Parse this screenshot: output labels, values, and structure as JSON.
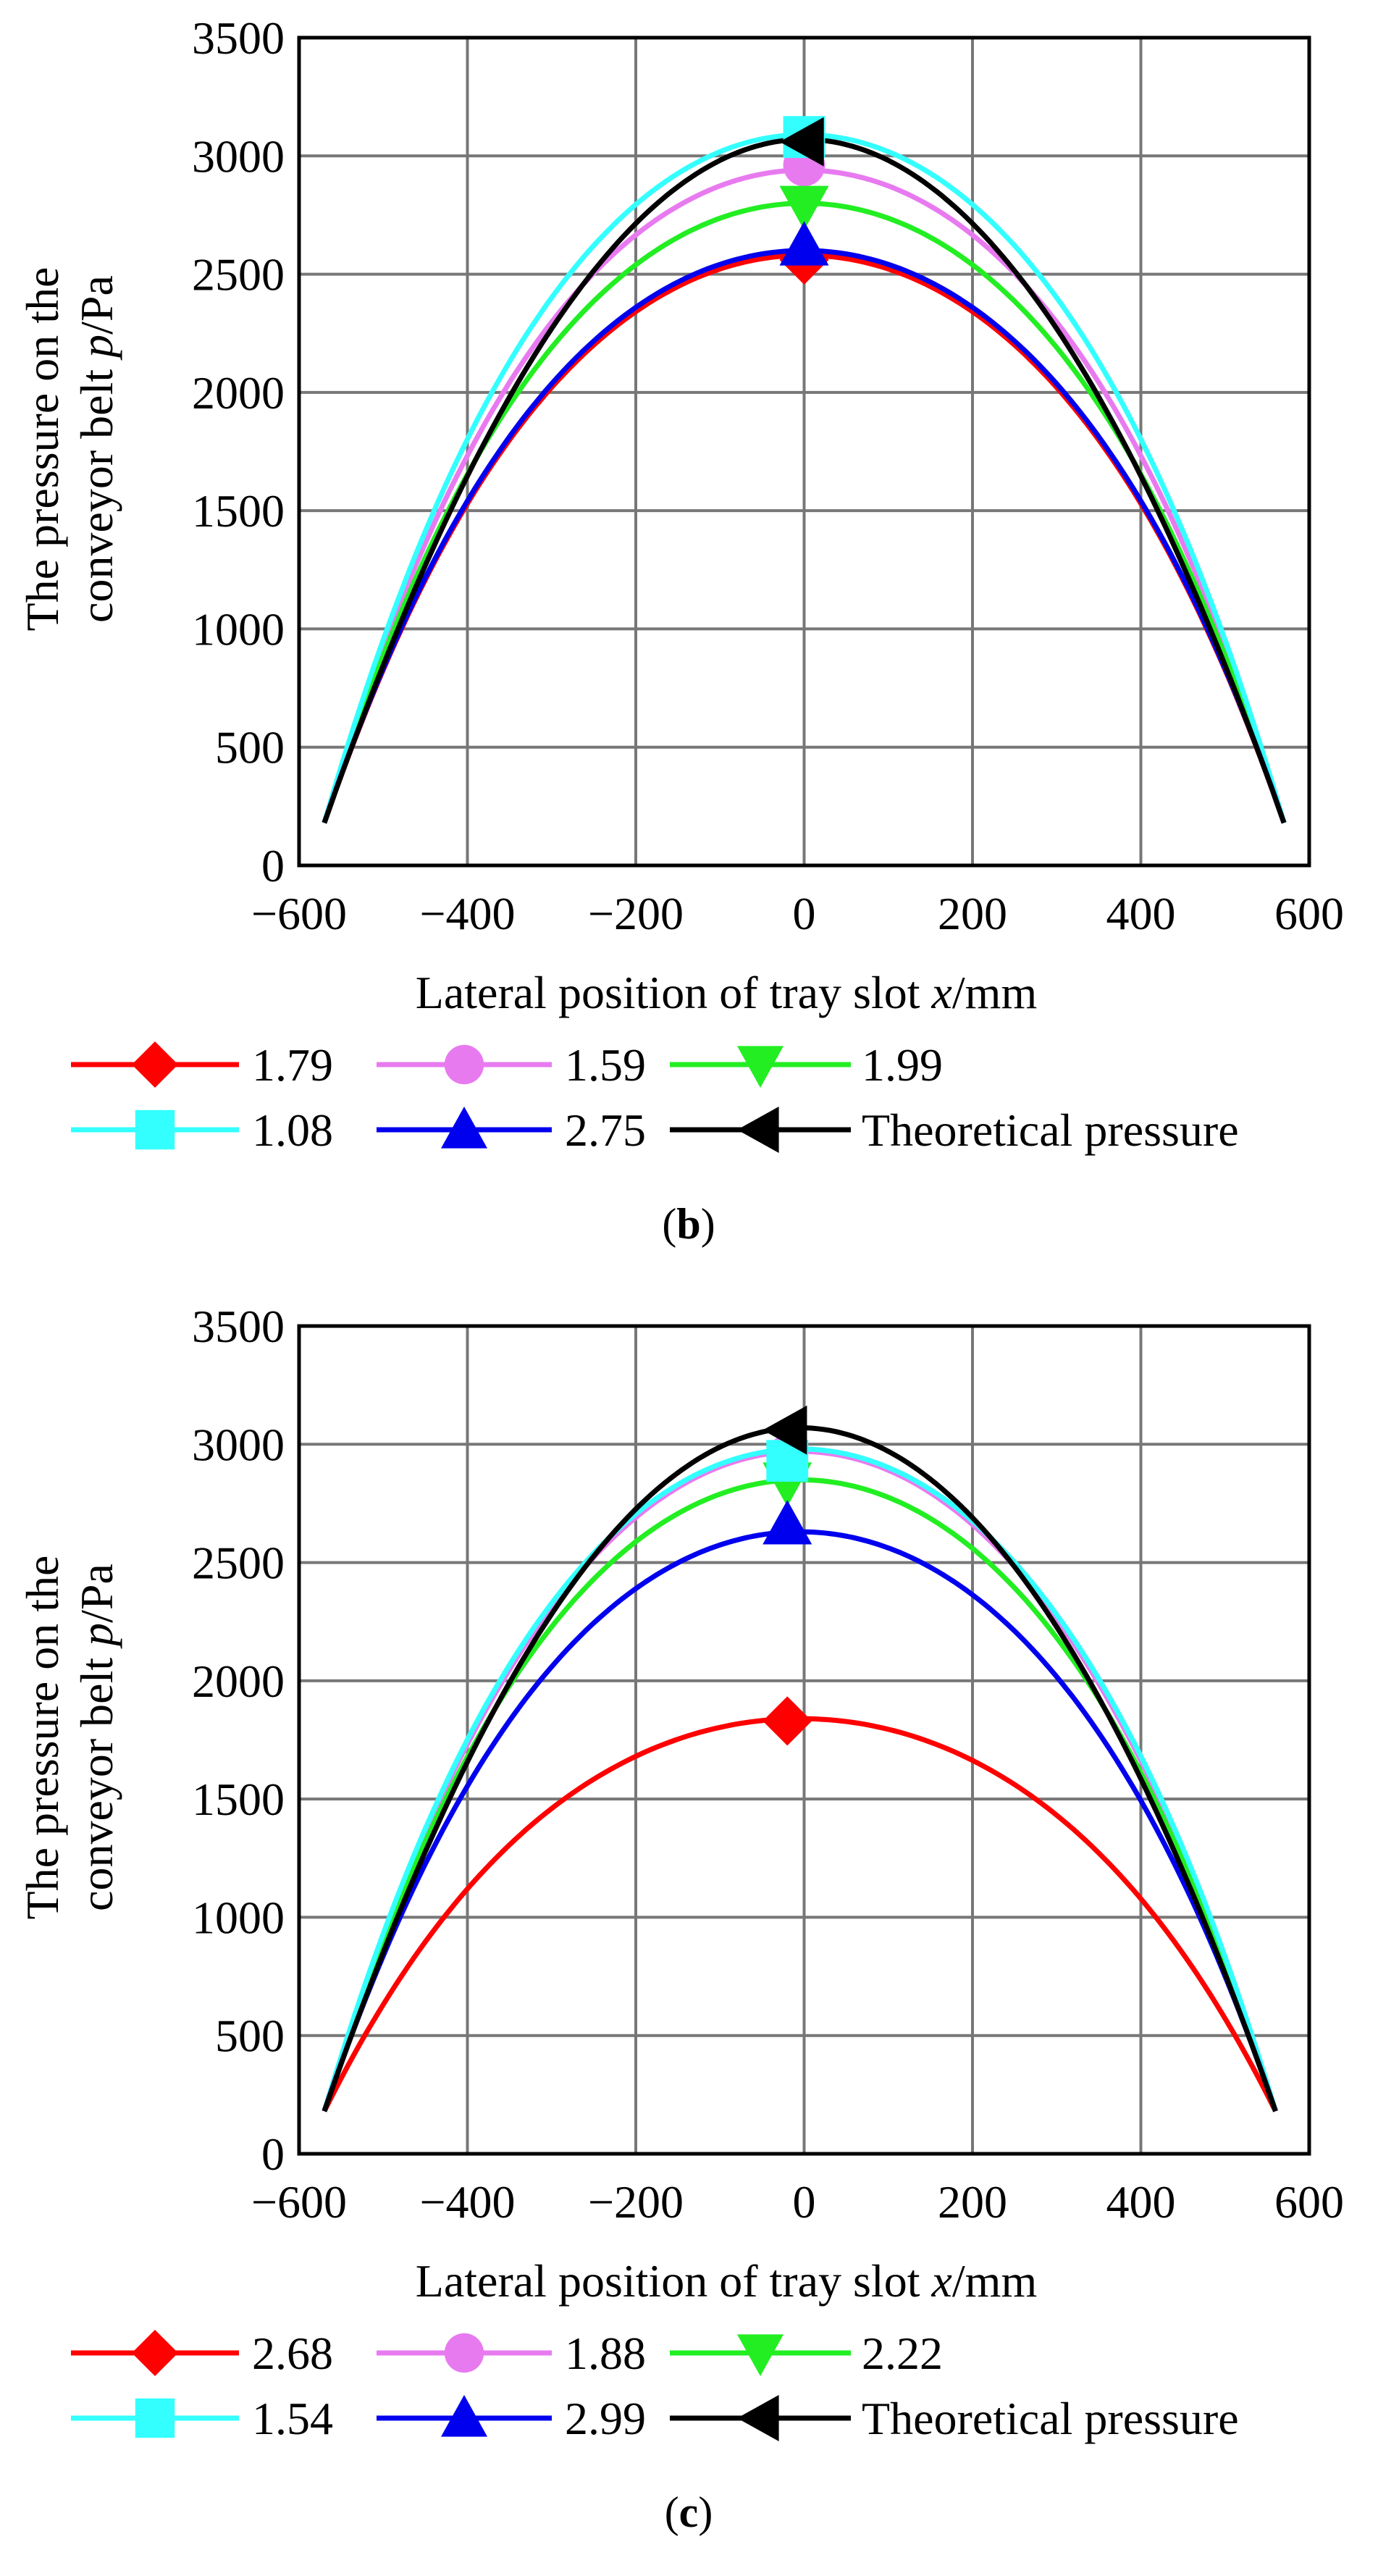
{
  "chart_data": [
    {
      "type": "line",
      "panel": "b",
      "caption_open": "(",
      "caption_letter": "b",
      "caption_close": ")",
      "xlabel_prefix": "Lateral position of tray slot ",
      "xlabel_var": "x",
      "xlabel_unit": "/mm",
      "ylabel_line1": "The pressure on the",
      "ylabel_line2_prefix": "conveyor belt ",
      "ylabel_var": "p",
      "ylabel_unit": "/Pa",
      "xlim": [
        -600,
        600
      ],
      "ylim": [
        0,
        3500
      ],
      "xticks": [
        -600,
        -400,
        -200,
        0,
        200,
        400,
        600
      ],
      "xtick_labels": [
        "−600",
        "−400",
        "−200",
        "0",
        "200",
        "400",
        "600"
      ],
      "yticks": [
        0,
        500,
        1000,
        1500,
        2000,
        2500,
        3000,
        3500
      ],
      "ytick_labels": [
        "0",
        "500",
        "1000",
        "1500",
        "2000",
        "2500",
        "3000",
        "3500"
      ],
      "grid": true,
      "legend_position": "bottom",
      "x_range": [
        -570,
        570
      ],
      "series": [
        {
          "name": "1.79",
          "color": "#ff0000",
          "marker": "diamond",
          "peak": 2580,
          "edge": 180,
          "shape": 0.55,
          "marker_x": 0,
          "marker_y": 2560
        },
        {
          "name": "1.59",
          "color": "#e87af0",
          "marker": "circle",
          "peak": 2940,
          "edge": 180,
          "shape": 0.55,
          "marker_x": 0,
          "marker_y": 2960
        },
        {
          "name": "1.99",
          "color": "#22ee22",
          "marker": "triangle-down",
          "peak": 2800,
          "edge": 180,
          "shape": 0.55,
          "marker_x": 0,
          "marker_y": 2790
        },
        {
          "name": "1.08",
          "color": "#33ffff",
          "marker": "square",
          "peak": 3090,
          "edge": 180,
          "shape": 0.5,
          "marker_x": 0,
          "marker_y": 3080
        },
        {
          "name": "2.75",
          "color": "#0000ee",
          "marker": "triangle-up",
          "peak": 2600,
          "edge": 180,
          "shape": 0.55,
          "marker_x": 0,
          "marker_y": 2620
        },
        {
          "name": "Theoretical pressure",
          "color": "#000000",
          "marker": "triangle-left",
          "peak": 3070,
          "edge": 180,
          "shape": 0.0,
          "marker_x": 0,
          "marker_y": 3060
        }
      ]
    },
    {
      "type": "line",
      "panel": "c",
      "caption_open": "(",
      "caption_letter": "c",
      "caption_close": ")",
      "xlabel_prefix": "Lateral position of tray slot ",
      "xlabel_var": "x",
      "xlabel_unit": "/mm",
      "ylabel_line1": "The pressure on the",
      "ylabel_line2_prefix": "conveyor belt ",
      "ylabel_var": "p",
      "ylabel_unit": "/Pa",
      "xlim": [
        -600,
        600
      ],
      "ylim": [
        0,
        3500
      ],
      "xticks": [
        -600,
        -400,
        -200,
        0,
        200,
        400,
        600
      ],
      "xtick_labels": [
        "−600",
        "−400",
        "−200",
        "0",
        "200",
        "400",
        "600"
      ],
      "yticks": [
        0,
        500,
        1000,
        1500,
        2000,
        2500,
        3000,
        3500
      ],
      "ytick_labels": [
        "0",
        "500",
        "1000",
        "1500",
        "2000",
        "2500",
        "3000",
        "3500"
      ],
      "grid": true,
      "legend_position": "bottom",
      "x_range": [
        -570,
        560
      ],
      "series": [
        {
          "name": "2.68",
          "color": "#ff0000",
          "marker": "diamond",
          "peak": 1840,
          "edge": 180,
          "shape": 0.55,
          "marker_x": -20,
          "marker_y": 1830
        },
        {
          "name": "1.88",
          "color": "#e87af0",
          "marker": "circle",
          "peak": 2970,
          "edge": 180,
          "shape": 0.45,
          "marker_x": -20,
          "marker_y": 2950
        },
        {
          "name": "2.22",
          "color": "#22ee22",
          "marker": "triangle-down",
          "peak": 2850,
          "edge": 180,
          "shape": 0.5,
          "marker_x": -20,
          "marker_y": 2840
        },
        {
          "name": "1.54",
          "color": "#33ffff",
          "marker": "square",
          "peak": 2980,
          "edge": 180,
          "shape": 0.5,
          "marker_x": -20,
          "marker_y": 2930
        },
        {
          "name": "2.99",
          "color": "#0000ee",
          "marker": "triangle-up",
          "peak": 2630,
          "edge": 180,
          "shape": 0.5,
          "marker_x": -20,
          "marker_y": 2660
        },
        {
          "name": "Theoretical pressure",
          "color": "#000000",
          "marker": "triangle-left",
          "peak": 3070,
          "edge": 180,
          "shape": 0.0,
          "marker_x": -20,
          "marker_y": 3060
        }
      ]
    }
  ]
}
